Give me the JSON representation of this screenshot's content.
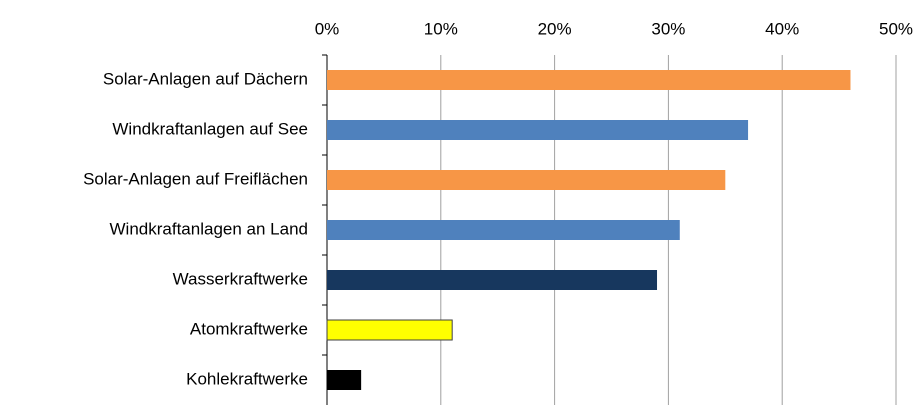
{
  "chart_data": {
    "type": "bar",
    "orientation": "horizontal",
    "categories": [
      "Solar-Anlagen auf Dächern",
      "Windkraftanlagen auf See",
      "Solar-Anlagen auf Freiflächen",
      "Windkraftanlagen an Land",
      "Wasserkraftwerke",
      "Atomkraftwerke",
      "Kohlekraftwerke"
    ],
    "values": [
      46,
      37,
      35,
      31,
      29,
      11,
      3
    ],
    "colors": [
      "#f79646",
      "#4f81bd",
      "#f79646",
      "#4f81bd",
      "#17375e",
      "#ffff00",
      "#000000"
    ],
    "xlim": [
      0,
      50
    ],
    "xticks": [
      {
        "value": 0,
        "label": "0%"
      },
      {
        "value": 10,
        "label": "10%"
      },
      {
        "value": 20,
        "label": "20%"
      },
      {
        "value": 30,
        "label": "30%"
      },
      {
        "value": 40,
        "label": "40%"
      },
      {
        "value": 50,
        "label": "50%"
      }
    ],
    "grid": true
  }
}
